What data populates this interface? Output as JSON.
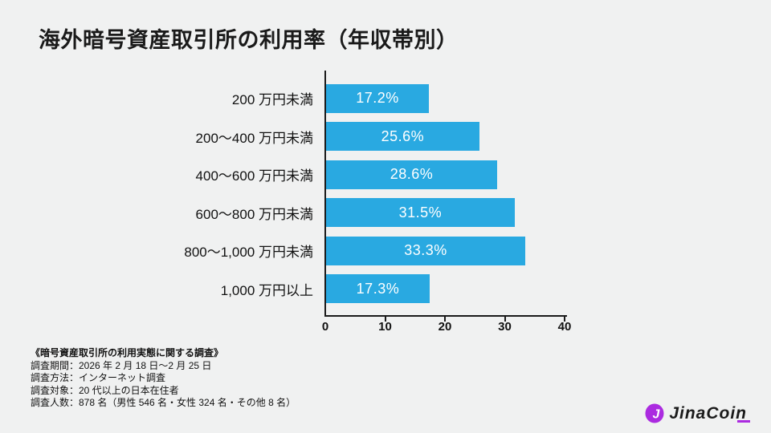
{
  "title": "海外暗号資産取引所の利用率（年収帯別）",
  "chart_data": {
    "type": "bar",
    "orientation": "horizontal",
    "title": "海外暗号資産取引所の利用率（年収帯別）",
    "categories": [
      "200 万円未満",
      "200～400 万円未満",
      "400～600 万円未満",
      "600～800 万円未満",
      "800～1,000 万円未満",
      "1,000 万円以上"
    ],
    "values": [
      17.2,
      25.6,
      28.6,
      31.5,
      33.3,
      17.3
    ],
    "value_labels": [
      "17.2%",
      "25.6%",
      "28.6%",
      "31.5%",
      "33.3%",
      "17.3%"
    ],
    "xlabel": "",
    "ylabel": "",
    "xlim": [
      0,
      40
    ],
    "xticks": [
      0,
      10,
      20,
      30,
      40
    ],
    "grid": false,
    "legend": "none",
    "bar_color": "#29a9e1",
    "value_label_color": "#ffffff",
    "axis_color": "#1a1a1a"
  },
  "notes": {
    "heading": "《暗号資産取引所の利用実態に関する調査》",
    "lines": [
      "調査期間：2026 年 2 月 18 日～2 月 25 日",
      "調査方法：インターネット調査",
      "調査対象：20 代以上の日本在住者",
      "調査人数：878 名（男性 546 名・女性 324 名・その他 8 名）"
    ]
  },
  "logo": {
    "text": "JinaCoin",
    "icon": "jinacoin-circle-j",
    "icon_letter": "J",
    "color": "#ab2be0"
  },
  "colors": {
    "background": "#f0f1f1",
    "bar": "#29a9e1",
    "axis": "#1a1a1a",
    "title_text": "#1a1a1a"
  }
}
